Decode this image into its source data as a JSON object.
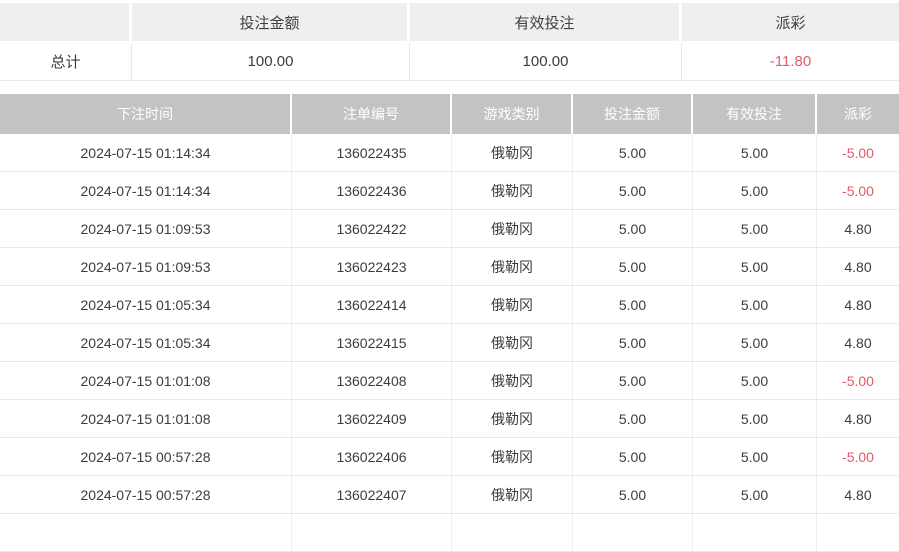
{
  "colors": {
    "summary_header_bg": "#efefef",
    "table_header_bg": "#c3c3c3",
    "table_header_text": "#ffffff",
    "body_text": "#3c3c3c",
    "negative_text": "#e25b68",
    "divider": "#e9e9e9"
  },
  "summary": {
    "headers": {
      "bet_amount": "投注金额",
      "valid_bet": "有效投注",
      "payout": "派彩"
    },
    "total_label": "总计",
    "totals": {
      "bet_amount": "100.00",
      "valid_bet": "100.00",
      "payout": "-11.80"
    }
  },
  "table": {
    "headers": {
      "time": "下注时间",
      "order_id": "注单编号",
      "game": "游戏类别",
      "bet_amount": "投注金额",
      "valid_bet": "有效投注",
      "payout": "派彩"
    },
    "rows": [
      {
        "time": "2024-07-15 01:14:34",
        "order_id": "136022435",
        "game": "俄勒冈",
        "bet_amount": "5.00",
        "valid_bet": "5.00",
        "payout": "-5.00"
      },
      {
        "time": "2024-07-15 01:14:34",
        "order_id": "136022436",
        "game": "俄勒冈",
        "bet_amount": "5.00",
        "valid_bet": "5.00",
        "payout": "-5.00"
      },
      {
        "time": "2024-07-15 01:09:53",
        "order_id": "136022422",
        "game": "俄勒冈",
        "bet_amount": "5.00",
        "valid_bet": "5.00",
        "payout": "4.80"
      },
      {
        "time": "2024-07-15 01:09:53",
        "order_id": "136022423",
        "game": "俄勒冈",
        "bet_amount": "5.00",
        "valid_bet": "5.00",
        "payout": "4.80"
      },
      {
        "time": "2024-07-15 01:05:34",
        "order_id": "136022414",
        "game": "俄勒冈",
        "bet_amount": "5.00",
        "valid_bet": "5.00",
        "payout": "4.80"
      },
      {
        "time": "2024-07-15 01:05:34",
        "order_id": "136022415",
        "game": "俄勒冈",
        "bet_amount": "5.00",
        "valid_bet": "5.00",
        "payout": "4.80"
      },
      {
        "time": "2024-07-15 01:01:08",
        "order_id": "136022408",
        "game": "俄勒冈",
        "bet_amount": "5.00",
        "valid_bet": "5.00",
        "payout": "-5.00"
      },
      {
        "time": "2024-07-15 01:01:08",
        "order_id": "136022409",
        "game": "俄勒冈",
        "bet_amount": "5.00",
        "valid_bet": "5.00",
        "payout": "4.80"
      },
      {
        "time": "2024-07-15 00:57:28",
        "order_id": "136022406",
        "game": "俄勒冈",
        "bet_amount": "5.00",
        "valid_bet": "5.00",
        "payout": "-5.00"
      },
      {
        "time": "2024-07-15 00:57:28",
        "order_id": "136022407",
        "game": "俄勒冈",
        "bet_amount": "5.00",
        "valid_bet": "5.00",
        "payout": "4.80"
      }
    ]
  }
}
